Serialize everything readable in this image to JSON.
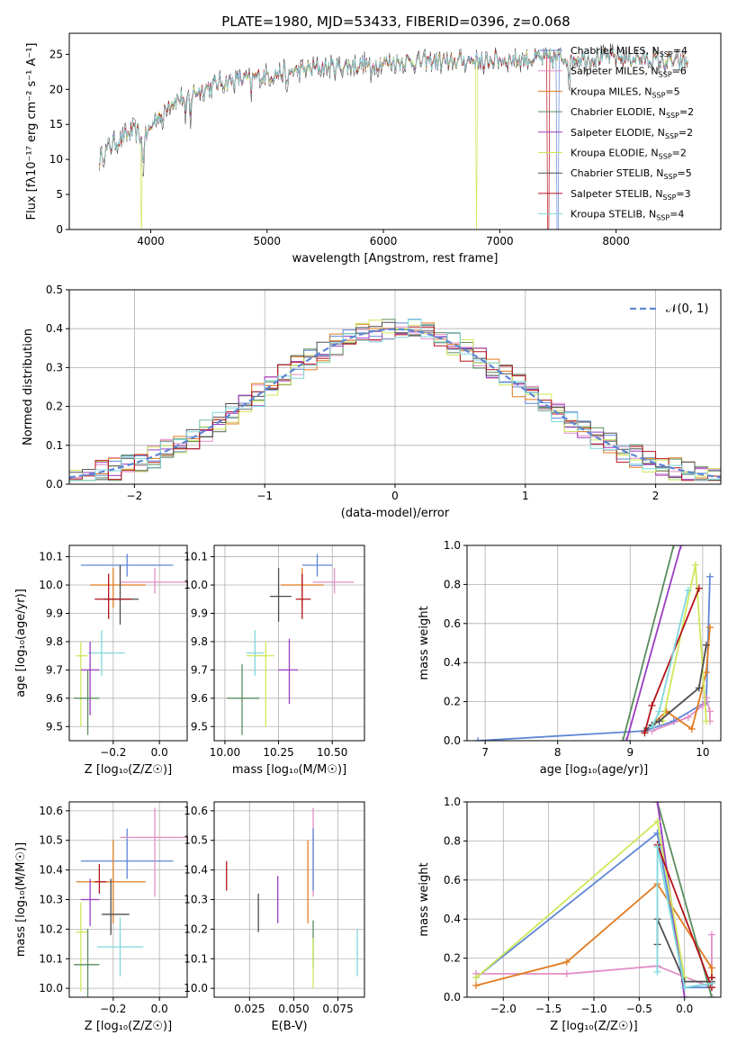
{
  "title": "PLATE=1980, MJD=53433, FIBERID=0396, z=0.068",
  "colors": {
    "Chabrier MILES": "#5f86d6",
    "Salpeter MILES": "#e28ec6",
    "Kroupa MILES": "#e07b1f",
    "Chabrier ELODIE": "#5a8d5e",
    "Salpeter ELODIE": "#9b3cc0",
    "Kroupa ELODIE": "#cde85a",
    "Chabrier STELIB": "#4d4d4d",
    "Salpeter STELIB": "#b5121b",
    "Kroupa STELIB": "#7fd8dc"
  },
  "chart_data": [
    {
      "id": "spectrum",
      "type": "line",
      "xlabel": "wavelength [Angstrom, rest frame]",
      "ylabel": "Flux [fλ10⁻¹⁷ erg cm⁻² s⁻¹ A⁻¹]",
      "xlim": [
        3300,
        8900
      ],
      "ylim": [
        0,
        28
      ],
      "xticks": [
        4000,
        5000,
        6000,
        7000,
        8000
      ],
      "yticks": [
        0,
        5,
        10,
        15,
        20,
        25
      ],
      "grid": false,
      "legend_position": "upper-right",
      "continuum": [
        [
          3560,
          10
        ],
        [
          3650,
          12
        ],
        [
          3750,
          13
        ],
        [
          3850,
          14
        ],
        [
          3950,
          13
        ],
        [
          4050,
          16
        ],
        [
          4150,
          18
        ],
        [
          4300,
          19
        ],
        [
          4450,
          20
        ],
        [
          4600,
          21
        ],
        [
          4800,
          21.5
        ],
        [
          5000,
          22
        ],
        [
          5200,
          22.5
        ],
        [
          5400,
          23
        ],
        [
          5600,
          23.2
        ],
        [
          5800,
          23.5
        ],
        [
          6000,
          23.8
        ],
        [
          6200,
          24
        ],
        [
          6400,
          24
        ],
        [
          6600,
          24
        ],
        [
          6800,
          24.2
        ],
        [
          7000,
          24.2
        ],
        [
          7200,
          24.3
        ],
        [
          7400,
          24.4
        ],
        [
          7600,
          24.5
        ],
        [
          7800,
          24.5
        ],
        [
          8000,
          24.6
        ],
        [
          8200,
          24.4
        ],
        [
          8400,
          24
        ],
        [
          8600,
          23.8
        ]
      ],
      "absorption_features": [
        [
          3933,
          -6
        ],
        [
          4101,
          -4
        ],
        [
          4300,
          -5
        ],
        [
          4340,
          -4
        ],
        [
          4861,
          -3
        ],
        [
          5175,
          -4
        ],
        [
          5893,
          -3
        ],
        [
          6563,
          -2
        ],
        [
          6867,
          -3
        ],
        [
          7600,
          -4
        ]
      ],
      "series": [
        {
          "name": "Chabrier MILES, N$_{SSP}$=4"
        },
        {
          "name": "Salpeter MILES, N$_{SSP}$=6"
        },
        {
          "name": "Kroupa MILES, N$_{SSP}$=5"
        },
        {
          "name": "Chabrier ELODIE, N$_{SSP}$=2"
        },
        {
          "name": "Salpeter ELODIE, N$_{SSP}$=2"
        },
        {
          "name": "Kroupa ELODIE, N$_{SSP}$=2"
        },
        {
          "name": "Chabrier STELIB, N$_{SSP}$=5"
        },
        {
          "name": "Salpeter STELIB, N$_{SSP}$=3"
        },
        {
          "name": "Kroupa STELIB, N$_{SSP}$=4"
        }
      ],
      "legend_labels": [
        "Chabrier MILES, N_SSP=4",
        "Salpeter MILES, N_SSP=6",
        "Kroupa MILES, N_SSP=5",
        "Chabrier ELODIE, N_SSP=2",
        "Salpeter ELODIE, N_SSP=2",
        "Kroupa ELODIE, N_SSP=2",
        "Chabrier STELIB, N_SSP=5",
        "Salpeter STELIB, N_SSP=3",
        "Kroupa STELIB, N_SSP=4"
      ],
      "dropouts": [
        {
          "model": "Kroupa ELODIE",
          "x": 3920
        },
        {
          "model": "Kroupa ELODIE",
          "x": 6800
        },
        {
          "model": "Salpeter STELIB",
          "x": 7420
        },
        {
          "model": "Chabrier MILES",
          "x": 7500
        }
      ]
    },
    {
      "id": "residuals",
      "type": "histogram",
      "xlabel": "(data-model)/error",
      "ylabel": "Normed distribution",
      "xlim": [
        -2.5,
        2.5
      ],
      "ylim": [
        0,
        0.5
      ],
      "xticks": [
        -2,
        -1,
        0,
        1,
        2
      ],
      "yticks": [
        0.0,
        0.1,
        0.2,
        0.3,
        0.4,
        0.5
      ],
      "grid": true,
      "legend": {
        "label": "𝒩(0, 1)",
        "color": "#5f86d6",
        "position": "upper-right"
      }
    },
    {
      "id": "age_vs_Z",
      "type": "errorbar",
      "xlabel": "Z [log₁₀(Z/Z☉)]",
      "ylabel": "age  [log₁₀(age/yr)]",
      "xlim": [
        -0.39,
        0.12
      ],
      "ylim": [
        9.45,
        10.14
      ],
      "xticks": [
        -0.2,
        0.0
      ],
      "yticks": [
        9.5,
        9.6,
        9.7,
        9.8,
        9.9,
        10.0,
        10.1
      ],
      "grid": true,
      "points": [
        {
          "model": "Chabrier MILES",
          "x": -0.14,
          "xerr": [
            0.2,
            0.2
          ],
          "y": 10.07,
          "yerr": [
            0.04,
            0.04
          ]
        },
        {
          "model": "Salpeter MILES",
          "x": -0.02,
          "xerr": [
            0.15,
            0.14
          ],
          "y": 10.01,
          "yerr": [
            0.04,
            0.05
          ]
        },
        {
          "model": "Kroupa MILES",
          "x": -0.2,
          "xerr": [
            0.1,
            0.14
          ],
          "y": 10.0,
          "yerr": [
            0.08,
            0.06
          ]
        },
        {
          "model": "Chabrier STELIB",
          "x": -0.17,
          "xerr": [
            0.07,
            0.08
          ],
          "y": 9.95,
          "yerr": [
            0.09,
            0.12
          ]
        },
        {
          "model": "Salpeter STELIB",
          "x": -0.22,
          "xerr": [
            0.06,
            0.1
          ],
          "y": 9.95,
          "yerr": [
            0.07,
            0.09
          ]
        },
        {
          "model": "Kroupa STELIB",
          "x": -0.25,
          "xerr": [
            0.06,
            0.1
          ],
          "y": 9.76,
          "yerr": [
            0.08,
            0.08
          ]
        },
        {
          "model": "Kroupa ELODIE",
          "x": -0.34,
          "xerr": [
            0.02,
            0.03
          ],
          "y": 9.75,
          "yerr": [
            0.25,
            0.05
          ]
        },
        {
          "model": "Salpeter ELODIE",
          "x": -0.3,
          "xerr": [
            0.04,
            0.04
          ],
          "y": 9.7,
          "yerr": [
            0.16,
            0.1
          ]
        },
        {
          "model": "Chabrier ELODIE",
          "x": -0.31,
          "xerr": [
            0.06,
            0.05
          ],
          "y": 9.6,
          "yerr": [
            0.13,
            0.1
          ]
        }
      ]
    },
    {
      "id": "age_vs_mass",
      "type": "errorbar",
      "xlabel": "mass [log₁₀(M/M☉)]",
      "xlim": [
        9.95,
        10.65
      ],
      "ylim": [
        9.45,
        10.14
      ],
      "xticks": [
        10.0,
        10.25,
        10.5
      ],
      "yticks": [
        9.5,
        9.6,
        9.7,
        9.8,
        9.9,
        10.0,
        10.1
      ],
      "grid": true,
      "points": [
        {
          "model": "Chabrier MILES",
          "x": 10.43,
          "xerr": [
            0.07,
            0.07
          ],
          "y": 10.07,
          "yerr": [
            0.04,
            0.04
          ]
        },
        {
          "model": "Salpeter MILES",
          "x": 10.51,
          "xerr": [
            0.1,
            0.09
          ],
          "y": 10.01,
          "yerr": [
            0.04,
            0.05
          ]
        },
        {
          "model": "Kroupa MILES",
          "x": 10.36,
          "xerr": [
            0.1,
            0.1
          ],
          "y": 10.0,
          "yerr": [
            0.08,
            0.06
          ]
        },
        {
          "model": "Chabrier STELIB",
          "x": 10.25,
          "xerr": [
            0.04,
            0.06
          ],
          "y": 9.96,
          "yerr": [
            0.09,
            0.1
          ]
        },
        {
          "model": "Salpeter STELIB",
          "x": 10.36,
          "xerr": [
            0.03,
            0.04
          ],
          "y": 9.95,
          "yerr": [
            0.07,
            0.09
          ]
        },
        {
          "model": "Kroupa STELIB",
          "x": 10.14,
          "xerr": [
            0.04,
            0.04
          ],
          "y": 9.76,
          "yerr": [
            0.08,
            0.08
          ]
        },
        {
          "model": "Kroupa ELODIE",
          "x": 10.19,
          "xerr": [
            0.09,
            0.04
          ],
          "y": 9.75,
          "yerr": [
            0.25,
            0.05
          ]
        },
        {
          "model": "Salpeter ELODIE",
          "x": 10.3,
          "xerr": [
            0.05,
            0.04
          ],
          "y": 9.7,
          "yerr": [
            0.12,
            0.11
          ]
        },
        {
          "model": "Chabrier ELODIE",
          "x": 10.08,
          "xerr": [
            0.07,
            0.08
          ],
          "y": 9.6,
          "yerr": [
            0.13,
            0.12
          ]
        }
      ]
    },
    {
      "id": "massweight_vs_age",
      "type": "line",
      "xlabel": "age  [log₁₀(age/yr)]",
      "ylabel": "mass weight",
      "xlim": [
        6.75,
        10.25
      ],
      "ylim": [
        0.0,
        1.0
      ],
      "xticks": [
        7,
        8,
        9,
        10
      ],
      "yticks": [
        0.0,
        0.2,
        0.4,
        0.6,
        0.8,
        1.0
      ],
      "grid": true,
      "series": [
        {
          "model": "Chabrier MILES",
          "x": [
            6.9,
            9.2,
            9.6,
            10.05,
            10.1
          ],
          "y": [
            0.0,
            0.05,
            0.1,
            0.2,
            0.84
          ]
        },
        {
          "model": "Salpeter MILES",
          "x": [
            9.3,
            9.8,
            10.0,
            10.05,
            10.1,
            10.1
          ],
          "y": [
            0.05,
            0.12,
            0.18,
            0.22,
            0.15,
            0.1
          ]
        },
        {
          "model": "Kroupa MILES",
          "x": [
            9.2,
            9.5,
            9.85,
            10.05,
            10.1
          ],
          "y": [
            0.05,
            0.15,
            0.06,
            0.35,
            0.58
          ]
        },
        {
          "model": "Chabrier ELODIE",
          "x": [
            8.9,
            9.6
          ],
          "y": [
            0.0,
            1.0
          ]
        },
        {
          "model": "Salpeter ELODIE",
          "x": [
            8.95,
            9.7
          ],
          "y": [
            0.0,
            1.0
          ]
        },
        {
          "model": "Kroupa ELODIE",
          "x": [
            9.45,
            9.9,
            10.05
          ],
          "y": [
            0.1,
            0.9,
            0.1
          ]
        },
        {
          "model": "Chabrier STELIB",
          "x": [
            9.2,
            9.3,
            9.4,
            9.95,
            10.05
          ],
          "y": [
            0.05,
            0.08,
            0.1,
            0.27,
            0.49
          ]
        },
        {
          "model": "Salpeter STELIB",
          "x": [
            9.2,
            9.3,
            9.95
          ],
          "y": [
            0.04,
            0.18,
            0.78
          ]
        },
        {
          "model": "Kroupa STELIB",
          "x": [
            9.3,
            9.4,
            9.8
          ],
          "y": [
            0.07,
            0.15,
            0.77
          ]
        }
      ]
    },
    {
      "id": "mass_vs_Z",
      "type": "errorbar",
      "xlabel": "Z [log₁₀(Z/Z☉)]",
      "ylabel": "mass [log₁₀(M/M☉)]",
      "xlim": [
        -0.39,
        0.12
      ],
      "ylim": [
        9.97,
        10.63
      ],
      "xticks": [
        -0.2,
        0.0
      ],
      "yticks": [
        10.0,
        10.1,
        10.2,
        10.3,
        10.4,
        10.5,
        10.6
      ],
      "grid": true,
      "points": [
        {
          "model": "Chabrier MILES",
          "x": -0.14,
          "xerr": [
            0.2,
            0.2
          ],
          "y": 10.43,
          "yerr": [
            0.06,
            0.11
          ]
        },
        {
          "model": "Salpeter MILES",
          "x": -0.02,
          "xerr": [
            0.15,
            0.14
          ],
          "y": 10.51,
          "yerr": [
            0.2,
            0.1
          ]
        },
        {
          "model": "Kroupa MILES",
          "x": -0.2,
          "xerr": [
            0.16,
            0.14
          ],
          "y": 10.36,
          "yerr": [
            0.14,
            0.14
          ]
        },
        {
          "model": "Salpeter STELIB",
          "x": -0.26,
          "xerr": [
            0.02,
            0.03
          ],
          "y": 10.36,
          "yerr": [
            0.04,
            0.06
          ]
        },
        {
          "model": "Salpeter ELODIE",
          "x": -0.3,
          "xerr": [
            0.04,
            0.04
          ],
          "y": 10.3,
          "yerr": [
            0.09,
            0.07
          ]
        },
        {
          "model": "Chabrier STELIB",
          "x": -0.21,
          "xerr": [
            0.04,
            0.08
          ],
          "y": 10.25,
          "yerr": [
            0.07,
            0.12
          ]
        },
        {
          "model": "Kroupa STELIB",
          "x": -0.17,
          "xerr": [
            0.1,
            0.1
          ],
          "y": 10.14,
          "yerr": [
            0.1,
            0.1
          ]
        },
        {
          "model": "Kroupa ELODIE",
          "x": -0.34,
          "xerr": [
            0.02,
            0.03
          ],
          "y": 10.19,
          "yerr": [
            0.2,
            0.1
          ]
        },
        {
          "model": "Chabrier ELODIE",
          "x": -0.31,
          "xerr": [
            0.06,
            0.05
          ],
          "y": 10.08,
          "yerr": [
            0.13,
            0.12
          ]
        }
      ]
    },
    {
      "id": "mass_vs_ebv",
      "type": "errorbar",
      "xlabel": "E(B-V)",
      "xlim": [
        0.005,
        0.09
      ],
      "ylim": [
        9.97,
        10.63
      ],
      "xticks": [
        0.025,
        0.05,
        0.075
      ],
      "yticks": [
        10.0,
        10.1,
        10.2,
        10.3,
        10.4,
        10.5,
        10.6
      ],
      "grid": true,
      "points": [
        {
          "model": "Salpeter STELIB",
          "x": 0.012,
          "y": 10.38,
          "yerr": [
            0.05,
            0.05
          ]
        },
        {
          "model": "Chabrier STELIB",
          "x": 0.03,
          "y": 10.25,
          "yerr": [
            0.06,
            0.07
          ]
        },
        {
          "model": "Salpeter ELODIE",
          "x": 0.041,
          "y": 10.3,
          "yerr": [
            0.08,
            0.08
          ]
        },
        {
          "model": "Kroupa MILES",
          "x": 0.058,
          "y": 10.36,
          "yerr": [
            0.14,
            0.14
          ]
        },
        {
          "model": "Salpeter MILES",
          "x": 0.061,
          "y": 10.51,
          "yerr": [
            0.2,
            0.1
          ]
        },
        {
          "model": "Chabrier MILES",
          "x": 0.061,
          "y": 10.43,
          "yerr": [
            0.1,
            0.11
          ]
        },
        {
          "model": "Chabrier ELODIE",
          "x": 0.061,
          "y": 10.15,
          "yerr": [
            0.08,
            0.08
          ]
        },
        {
          "model": "Kroupa ELODIE",
          "x": 0.061,
          "y": 10.12,
          "yerr": [
            0.12,
            0.05
          ]
        },
        {
          "model": "Kroupa STELIB",
          "x": 0.086,
          "y": 10.12,
          "yerr": [
            0.08,
            0.08
          ]
        }
      ]
    },
    {
      "id": "massweight_vs_Z",
      "type": "line",
      "xlabel": "Z [log₁₀(Z/Z☉)]",
      "ylabel": "mass weight",
      "xlim": [
        -2.4,
        0.4
      ],
      "ylim": [
        0.0,
        1.0
      ],
      "xticks": [
        -2.0,
        -1.5,
        -1.0,
        -0.5,
        0.0
      ],
      "yticks": [
        0.0,
        0.2,
        0.4,
        0.6,
        0.8,
        1.0
      ],
      "grid": true,
      "series": [
        {
          "model": "Chabrier MILES",
          "x": [
            -2.3,
            -0.3,
            0.0,
            0.3
          ],
          "y": [
            0.1,
            0.84,
            0.05,
            0.05
          ]
        },
        {
          "model": "Salpeter MILES",
          "x": [
            -2.3,
            -1.3,
            -0.3,
            0.3,
            0.3
          ],
          "y": [
            0.12,
            0.12,
            0.16,
            0.05,
            0.32
          ]
        },
        {
          "model": "Kroupa MILES",
          "x": [
            -2.3,
            -1.3,
            -0.3,
            0.3,
            0.3
          ],
          "y": [
            0.06,
            0.18,
            0.58,
            0.15,
            0.05
          ]
        },
        {
          "model": "Chabrier ELODIE",
          "x": [
            -0.3,
            0.3
          ],
          "y": [
            1.0,
            0.0
          ]
        },
        {
          "model": "Salpeter ELODIE",
          "x": [
            -0.3,
            0.0
          ],
          "y": [
            1.0,
            0.0
          ]
        },
        {
          "model": "Kroupa ELODIE",
          "x": [
            -2.3,
            -0.3,
            0.0
          ],
          "y": [
            0.1,
            0.9,
            0.1
          ]
        },
        {
          "model": "Chabrier STELIB",
          "x": [
            -0.3,
            -0.3,
            0.0,
            0.3,
            0.3
          ],
          "y": [
            0.27,
            0.4,
            0.08,
            0.08,
            0.1
          ]
        },
        {
          "model": "Salpeter STELIB",
          "x": [
            -0.3,
            0.3,
            0.3
          ],
          "y": [
            0.78,
            0.05,
            0.1
          ]
        },
        {
          "model": "Kroupa STELIB",
          "x": [
            -0.3,
            -0.3,
            0.0,
            0.3
          ],
          "y": [
            0.13,
            0.77,
            0.05,
            0.07
          ]
        }
      ]
    }
  ]
}
